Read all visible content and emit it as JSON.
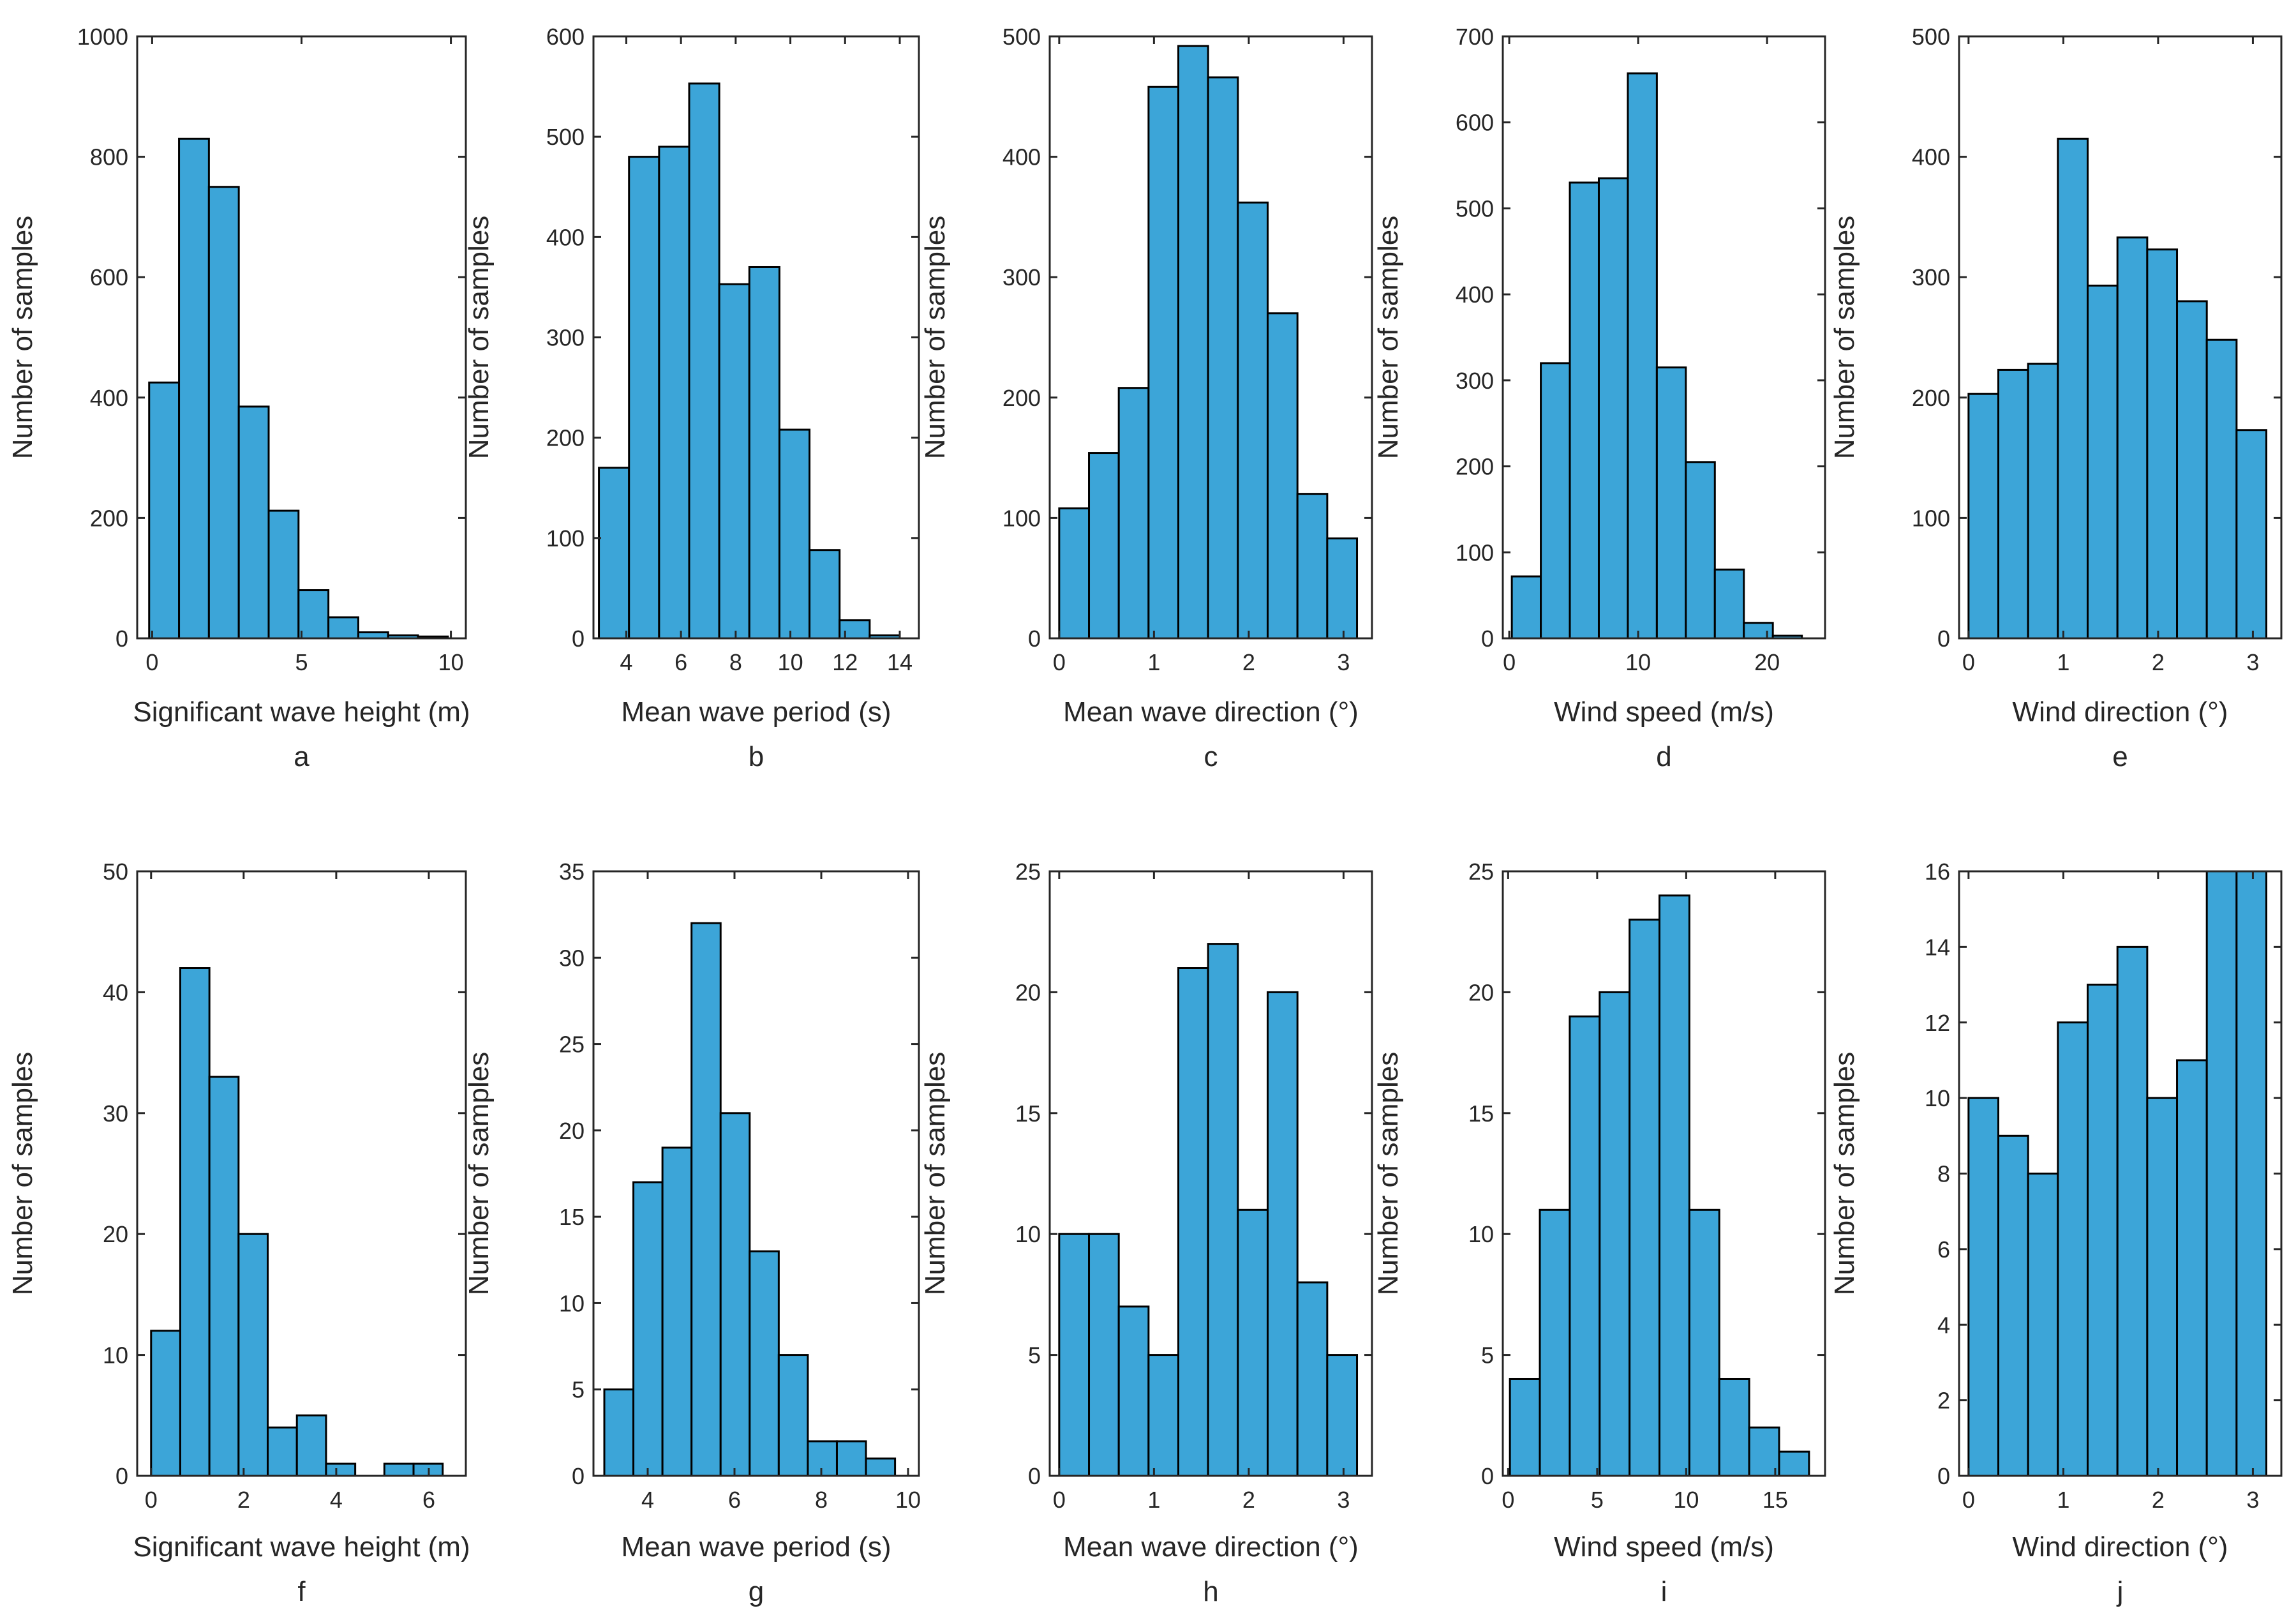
{
  "style": {
    "bar_fill": "#3CA5D8",
    "bar_stroke": "#000000",
    "axis_color": "#262626"
  },
  "chart_data": [
    {
      "id": "a",
      "type": "bar",
      "panel_label": "a",
      "xlabel": "Significant wave height (m)",
      "ylabel": "Number of samples",
      "xlim": [
        -0.5,
        10.5
      ],
      "ylim": [
        0,
        1000
      ],
      "xticks": [
        0,
        5,
        10
      ],
      "yticks": [
        0,
        200,
        400,
        600,
        800,
        1000
      ],
      "bins": {
        "start": -0.1,
        "width": 1.0
      },
      "values": [
        425,
        830,
        750,
        385,
        212,
        80,
        35,
        10,
        5,
        3
      ]
    },
    {
      "id": "b",
      "type": "bar",
      "panel_label": "b",
      "xlabel": "Mean wave period (s)",
      "ylabel": "Number of samples",
      "xlim": [
        2.8,
        14.7
      ],
      "ylim": [
        0,
        600
      ],
      "xticks": [
        4,
        6,
        8,
        10,
        12,
        14
      ],
      "yticks": [
        0,
        100,
        200,
        300,
        400,
        500,
        600
      ],
      "bins": {
        "start": 3.0,
        "width": 1.1
      },
      "values": [
        170,
        480,
        490,
        553,
        353,
        370,
        208,
        88,
        18,
        3
      ]
    },
    {
      "id": "c",
      "type": "bar",
      "panel_label": "c",
      "xlabel": "Mean wave direction (°)",
      "ylabel": "Number of samples",
      "xlim": [
        -0.1,
        3.3
      ],
      "ylim": [
        0,
        500
      ],
      "xticks": [
        0,
        1,
        2,
        3
      ],
      "yticks": [
        0,
        100,
        200,
        300,
        400,
        500
      ],
      "bins": {
        "start": 0.0,
        "width": 0.3142
      },
      "values": [
        108,
        154,
        208,
        458,
        492,
        466,
        362,
        270,
        120,
        83
      ]
    },
    {
      "id": "d",
      "type": "bar",
      "panel_label": "d",
      "xlabel": "Wind speed (m/s)",
      "ylabel": "Number of samples",
      "xlim": [
        -0.5,
        24.5
      ],
      "ylim": [
        0,
        700
      ],
      "xticks": [
        0,
        10,
        20
      ],
      "yticks": [
        0,
        100,
        200,
        300,
        400,
        500,
        600,
        700
      ],
      "bins": {
        "start": 0.2,
        "width": 2.25
      },
      "values": [
        72,
        320,
        530,
        535,
        657,
        315,
        205,
        80,
        18,
        3
      ]
    },
    {
      "id": "e",
      "type": "bar",
      "panel_label": "e",
      "xlabel": "Wind direction (°)",
      "ylabel": "Number of samples",
      "xlim": [
        -0.1,
        3.3
      ],
      "ylim": [
        0,
        500
      ],
      "xticks": [
        0,
        1,
        2,
        3
      ],
      "yticks": [
        0,
        100,
        200,
        300,
        400,
        500
      ],
      "bins": {
        "start": 0.0,
        "width": 0.3142
      },
      "values": [
        203,
        223,
        228,
        415,
        293,
        333,
        323,
        280,
        248,
        173
      ]
    },
    {
      "id": "f",
      "type": "bar",
      "panel_label": "f",
      "xlabel": "Significant wave height (m)",
      "ylabel": "Number of samples",
      "xlim": [
        -0.3,
        6.8
      ],
      "ylim": [
        0,
        50
      ],
      "xticks": [
        0,
        2,
        4,
        6
      ],
      "yticks": [
        0,
        10,
        20,
        30,
        40,
        50
      ],
      "bins": {
        "start": 0.0,
        "width": 0.63
      },
      "values": [
        12,
        42,
        33,
        20,
        4,
        5,
        1,
        0,
        1,
        1
      ]
    },
    {
      "id": "g",
      "type": "bar",
      "panel_label": "g",
      "xlabel": "Mean wave period (s)",
      "ylabel": "Number of samples",
      "xlim": [
        2.75,
        10.25
      ],
      "ylim": [
        0,
        35
      ],
      "xticks": [
        4,
        6,
        8,
        10
      ],
      "yticks": [
        0,
        5,
        10,
        15,
        20,
        25,
        30,
        35
      ],
      "bins": {
        "start": 3.0,
        "width": 0.67
      },
      "values": [
        5,
        17,
        19,
        32,
        21,
        13,
        7,
        2,
        2,
        1
      ]
    },
    {
      "id": "h",
      "type": "bar",
      "panel_label": "h",
      "xlabel": "Mean wave direction (°)",
      "ylabel": "Number of samples",
      "xlim": [
        -0.1,
        3.3
      ],
      "ylim": [
        0,
        25
      ],
      "xticks": [
        0,
        1,
        2,
        3
      ],
      "yticks": [
        0,
        5,
        10,
        15,
        20,
        25
      ],
      "bins": {
        "start": 0.0,
        "width": 0.3142
      },
      "values": [
        10,
        10,
        7,
        5,
        21,
        22,
        11,
        20,
        8,
        5
      ]
    },
    {
      "id": "i",
      "type": "bar",
      "panel_label": "i",
      "xlabel": "Wind speed (m/s)",
      "ylabel": "Number of samples",
      "xlim": [
        -0.3,
        17.8
      ],
      "ylim": [
        0,
        25
      ],
      "xticks": [
        0,
        5,
        10,
        15
      ],
      "yticks": [
        0,
        5,
        10,
        15,
        20,
        25
      ],
      "bins": {
        "start": 0.1,
        "width": 1.68
      },
      "values": [
        4,
        11,
        19,
        20,
        23,
        24,
        11,
        4,
        2,
        1
      ]
    },
    {
      "id": "j",
      "type": "bar",
      "panel_label": "j",
      "xlabel": "Wind direction (°)",
      "ylabel": "Number of samples",
      "xlim": [
        -0.1,
        3.3
      ],
      "ylim": [
        0,
        16
      ],
      "xticks": [
        0,
        1,
        2,
        3
      ],
      "yticks": [
        0,
        2,
        4,
        6,
        8,
        10,
        12,
        14,
        16
      ],
      "bins": {
        "start": 0.0,
        "width": 0.3142
      },
      "values": [
        10,
        9,
        8,
        12,
        13,
        14,
        10,
        11,
        16,
        16
      ]
    }
  ]
}
